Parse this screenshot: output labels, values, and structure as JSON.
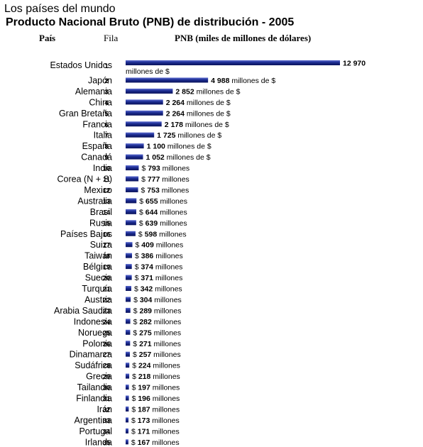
{
  "header": {
    "site_text": "Los países del mundo",
    "title": "Producto Nacional Bruto (PNB) de distribución - 2005"
  },
  "columns": {
    "country": "País",
    "rank": "Fila",
    "value": "PNB (miles de millones de dólares)"
  },
  "colors": {
    "bar": "#1b2b8f"
  },
  "chart_data": {
    "type": "bar",
    "orientation": "horizontal",
    "title": "Producto Nacional Bruto (PNB) de distribución - 2005",
    "xlabel": "PNB (miles de millones de dólares)",
    "categories": [
      "Estados Unidos",
      "Japón",
      "Alemania",
      "China",
      "Gran Bretaña",
      "Francia",
      "Italia",
      "España",
      "Canadá",
      "India",
      "Corea (N + S)",
      "Mexico",
      "Australia",
      "Brasil",
      "Rusia",
      "Países Bajos",
      "Suiza",
      "Taiwán",
      "Bélgica",
      "Suecia",
      "Turquía",
      "Austria",
      "Arabia Saudita",
      "Indonesia",
      "Noruega",
      "Polonia",
      "Dinamarca",
      "Sudáfrica",
      "Grecia",
      "Tailandia",
      "Finlandia",
      "Irán",
      "Argentina",
      "Portugal",
      "Irlanda"
    ],
    "ranks": [
      1,
      2,
      3,
      4,
      5,
      6,
      7,
      8,
      9,
      10,
      11,
      12,
      13,
      14,
      15,
      16,
      17,
      18,
      19,
      20,
      21,
      22,
      23,
      24,
      25,
      26,
      27,
      28,
      29,
      30,
      31,
      32,
      33,
      34,
      35
    ],
    "values": [
      12970,
      4988,
      2852,
      2264,
      2264,
      2178,
      1725,
      1100,
      1052,
      793,
      777,
      753,
      655,
      644,
      639,
      598,
      409,
      386,
      374,
      371,
      342,
      304,
      289,
      282,
      275,
      271,
      257,
      224,
      218,
      197,
      196,
      187,
      173,
      171,
      167
    ],
    "labels": [
      {
        "prefix": "",
        "num": "12 970",
        "suffix": "millones de $",
        "wrap": true
      },
      {
        "prefix": "",
        "num": "4 988",
        "suffix": " millones de $"
      },
      {
        "prefix": "",
        "num": "2 852",
        "suffix": " millones de $"
      },
      {
        "prefix": "",
        "num": "2 264",
        "suffix": " millones de $"
      },
      {
        "prefix": "",
        "num": "2 264",
        "suffix": " millones de $"
      },
      {
        "prefix": "",
        "num": "2 178",
        "suffix": " millones de $"
      },
      {
        "prefix": "",
        "num": "1 725",
        "suffix": " millones de $"
      },
      {
        "prefix": "",
        "num": "1 100",
        "suffix": " millones de $"
      },
      {
        "prefix": "",
        "num": "1 052",
        "suffix": " millones de $"
      },
      {
        "prefix": "$ ",
        "num": "793",
        "suffix": " millones"
      },
      {
        "prefix": "$ ",
        "num": "777",
        "suffix": " millones"
      },
      {
        "prefix": "$ ",
        "num": "753",
        "suffix": " millones"
      },
      {
        "prefix": "$ ",
        "num": "655",
        "suffix": " millones"
      },
      {
        "prefix": "$ ",
        "num": "644",
        "suffix": " millones"
      },
      {
        "prefix": "$ ",
        "num": "639",
        "suffix": " millones"
      },
      {
        "prefix": "$ ",
        "num": "598",
        "suffix": " millones"
      },
      {
        "prefix": "$ ",
        "num": "409",
        "suffix": " millones"
      },
      {
        "prefix": "$ ",
        "num": "386",
        "suffix": " millones"
      },
      {
        "prefix": "$ ",
        "num": "374",
        "suffix": " millones"
      },
      {
        "prefix": "$ ",
        "num": "371",
        "suffix": " millones"
      },
      {
        "prefix": "$ ",
        "num": "342",
        "suffix": " millones"
      },
      {
        "prefix": "$ ",
        "num": "304",
        "suffix": " millones"
      },
      {
        "prefix": "$ ",
        "num": "289",
        "suffix": " millones"
      },
      {
        "prefix": "$ ",
        "num": "282",
        "suffix": " millones"
      },
      {
        "prefix": "$ ",
        "num": "275",
        "suffix": " millones"
      },
      {
        "prefix": "$ ",
        "num": "271",
        "suffix": " millones"
      },
      {
        "prefix": "$ ",
        "num": "257",
        "suffix": " millones"
      },
      {
        "prefix": "$ ",
        "num": "224",
        "suffix": " millones"
      },
      {
        "prefix": "$ ",
        "num": "218",
        "suffix": " millones"
      },
      {
        "prefix": "$ ",
        "num": "197",
        "suffix": " millones"
      },
      {
        "prefix": "$ ",
        "num": "196",
        "suffix": " millones"
      },
      {
        "prefix": "$ ",
        "num": "187",
        "suffix": " millones"
      },
      {
        "prefix": "$ ",
        "num": "173",
        "suffix": " millones"
      },
      {
        "prefix": "$ ",
        "num": "171",
        "suffix": " millones"
      },
      {
        "prefix": "$ ",
        "num": "167",
        "suffix": " millones"
      }
    ]
  }
}
